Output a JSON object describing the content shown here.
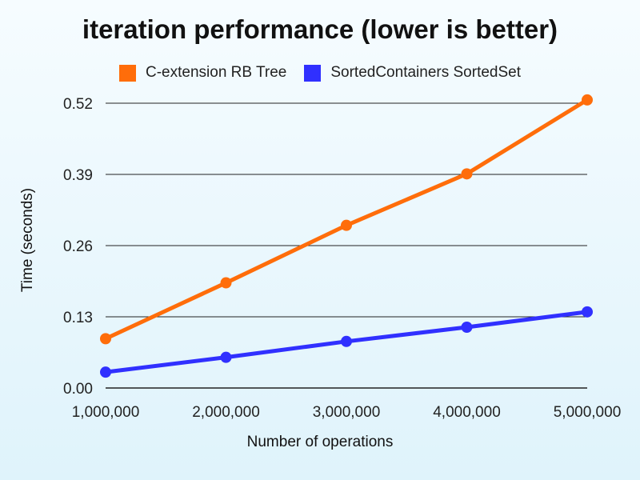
{
  "chart_data": {
    "type": "line",
    "title": "iteration performance (lower is better)",
    "xlabel": "Number of operations",
    "ylabel": "Time (seconds)",
    "x": [
      1000000,
      2000000,
      3000000,
      4000000,
      5000000
    ],
    "x_tick_labels": [
      "1,000,000",
      "2,000,000",
      "3,000,000",
      "4,000,000",
      "5,000,000"
    ],
    "y_ticks": [
      0,
      0.13,
      0.26,
      0.39,
      0.52
    ],
    "y_tick_labels": [
      "0.00",
      "0.13",
      "0.26",
      "0.39",
      "0.52"
    ],
    "ylim": [
      0,
      0.52
    ],
    "grid": true,
    "legend_position": "top-center",
    "series": [
      {
        "name": "C-extension RB Tree",
        "color": "#ff6d0a",
        "values": [
          0.09,
          0.192,
          0.297,
          0.391,
          0.526
        ]
      },
      {
        "name": "SortedContainers SortedSet",
        "color": "#3030ff",
        "values": [
          0.029,
          0.056,
          0.085,
          0.111,
          0.139
        ]
      }
    ]
  }
}
